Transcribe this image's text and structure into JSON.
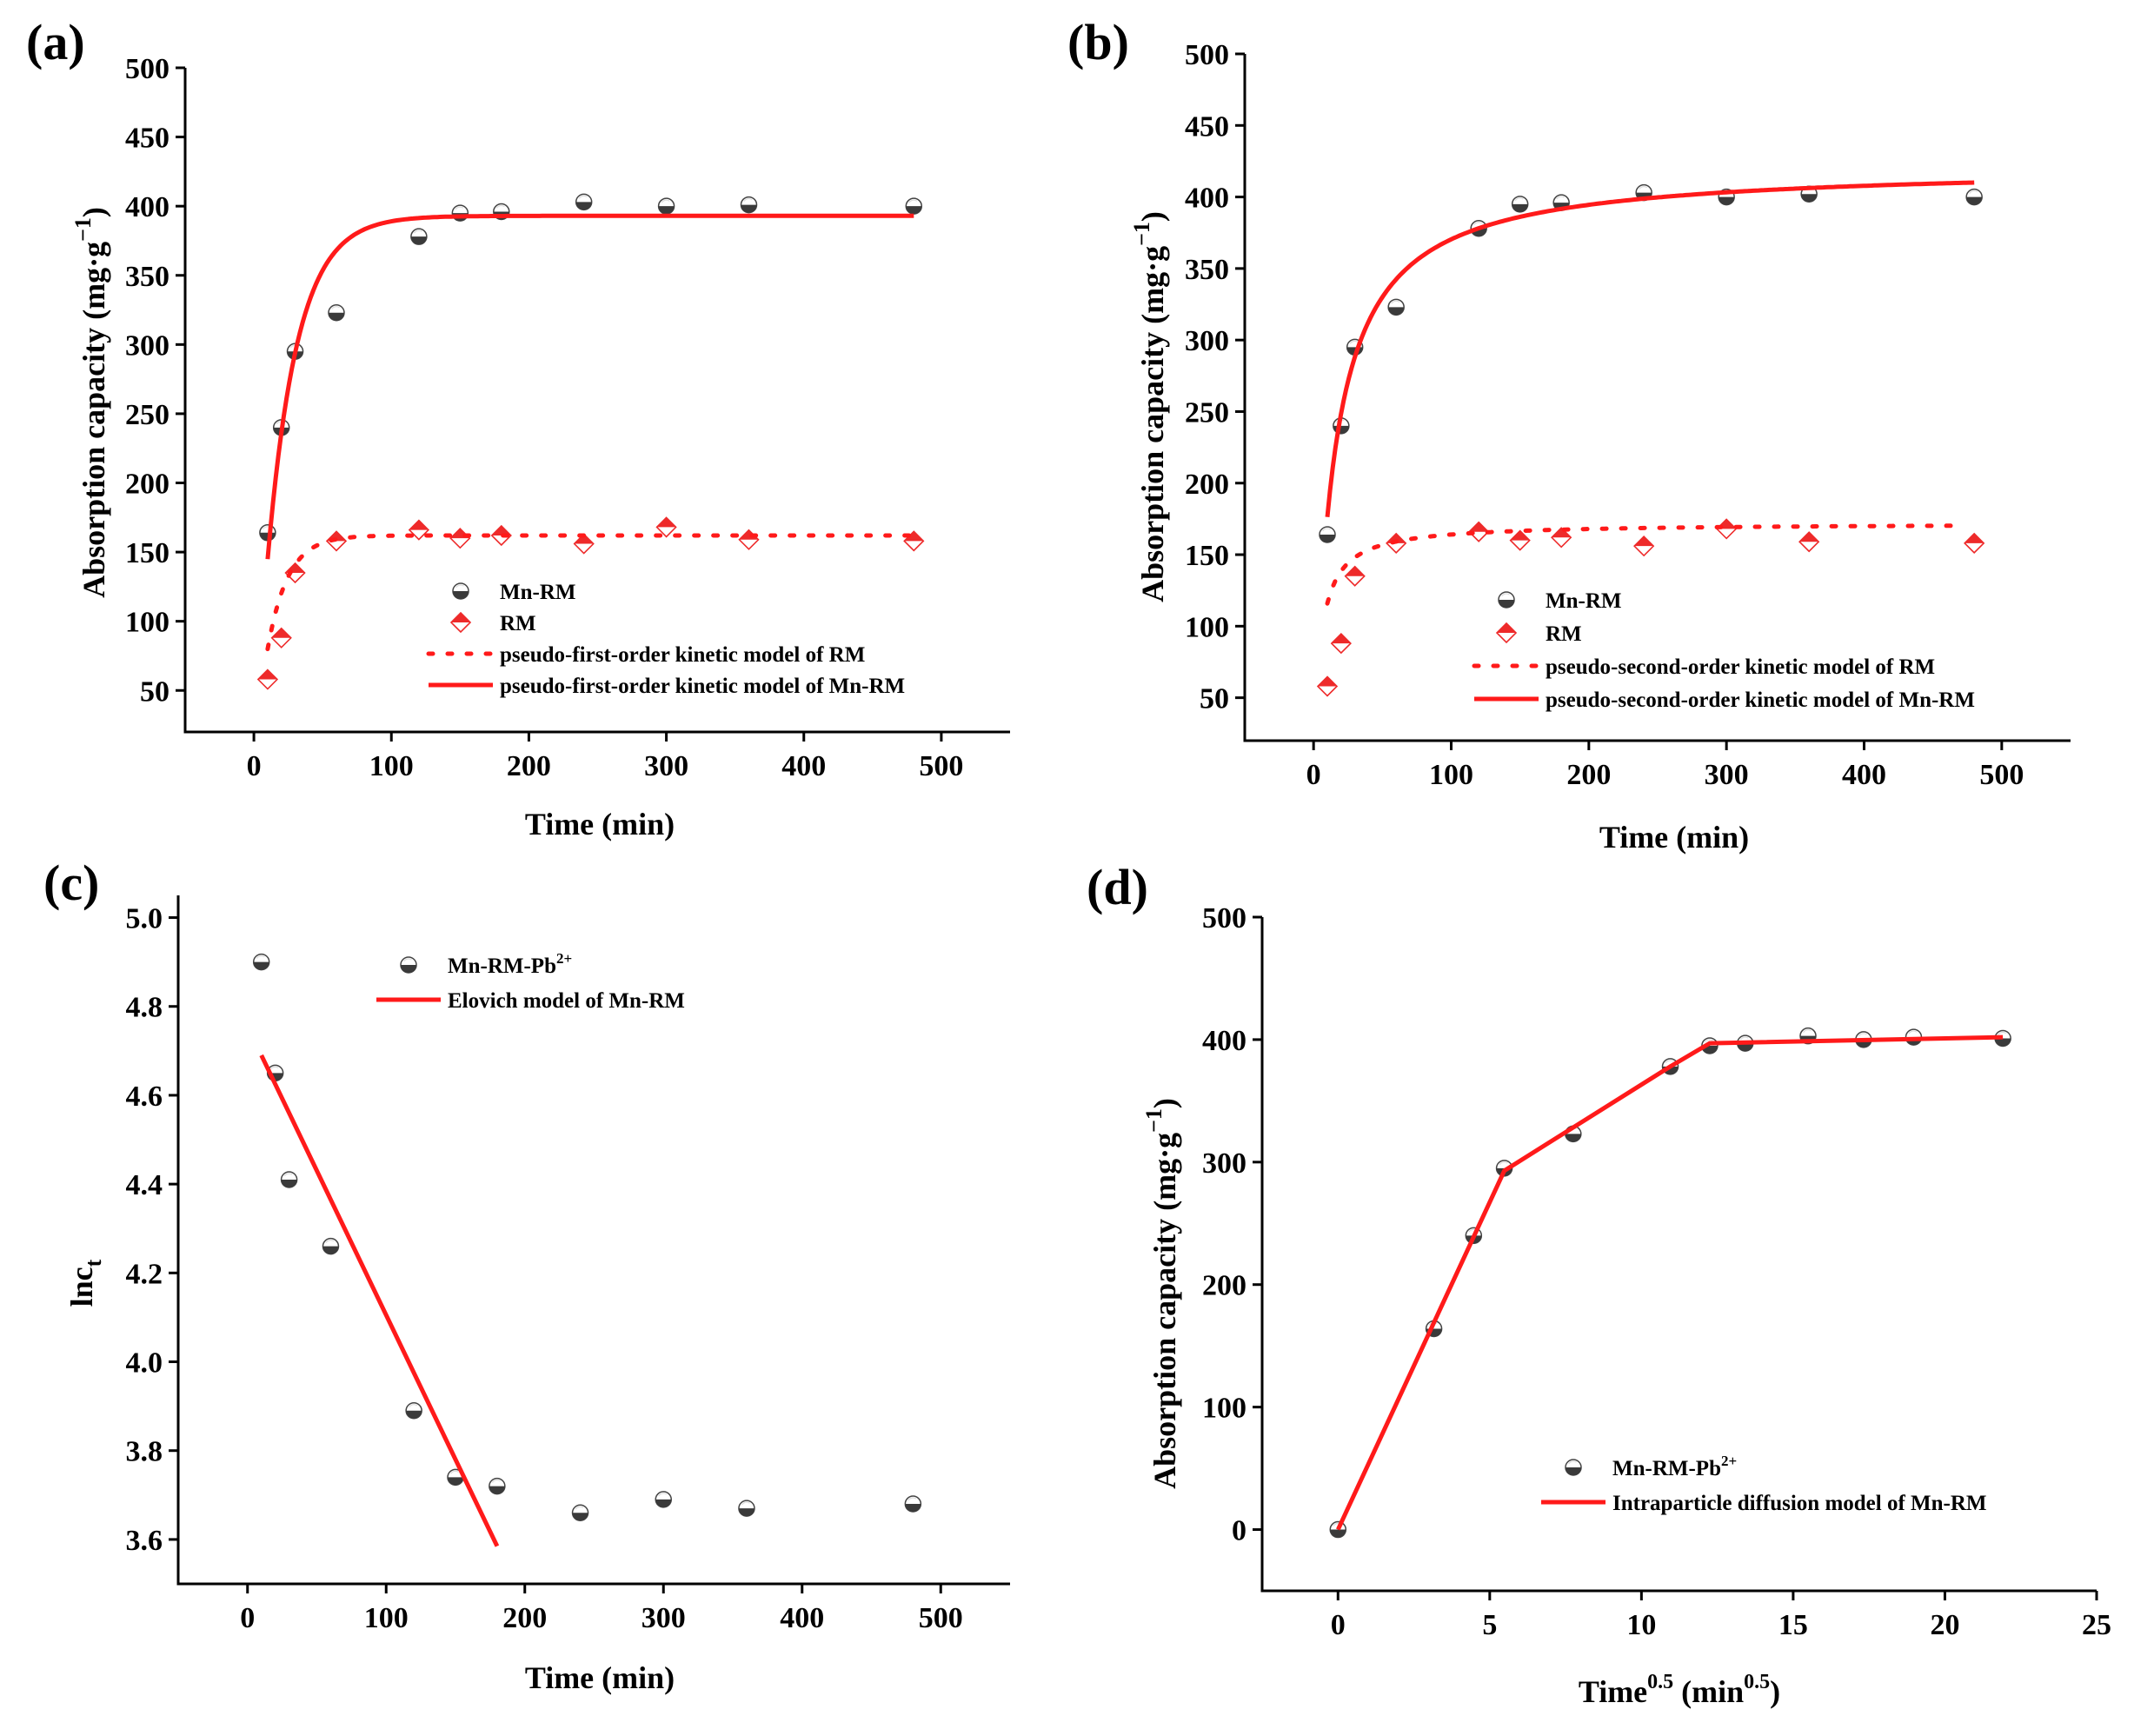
{
  "colors": {
    "fit": "#ff1a1a",
    "mn_dark": "#3a3a3a",
    "mn_light": "#ffffff",
    "rm_red": "#ee2a2a",
    "rm_light": "#ffffff",
    "axis": "#000000"
  },
  "chart_data": [
    {
      "panel_label": "(a)",
      "type": "scatter",
      "xlabel": "Time (min)",
      "ylabel": "Absorption capacity (mg·g⁻¹)",
      "xlim": [
        -50,
        550
      ],
      "ylim": [
        20,
        500
      ],
      "xticks": [
        0,
        100,
        200,
        300,
        400,
        500
      ],
      "yticks": [
        50,
        100,
        150,
        200,
        250,
        300,
        350,
        400,
        450,
        500
      ],
      "legend_position": "lower-right",
      "series": [
        {
          "name": "Mn-RM",
          "kind": "scatter",
          "marker": "halfcircle",
          "x": [
            10,
            20,
            30,
            60,
            120,
            150,
            180,
            240,
            300,
            360,
            480
          ],
          "y": [
            164,
            240,
            295,
            323,
            378,
            395,
            396,
            403,
            400,
            401,
            400
          ]
        },
        {
          "name": "RM",
          "kind": "scatter",
          "marker": "halfdiamond",
          "x": [
            10,
            20,
            30,
            60,
            120,
            150,
            180,
            240,
            300,
            360,
            480
          ],
          "y": [
            58,
            88,
            135,
            158,
            166,
            160,
            162,
            156,
            168,
            159,
            158
          ]
        },
        {
          "name": "pseudo-first-order kinetic model of RM",
          "kind": "line",
          "style": "dotted",
          "model": "pfo",
          "params": {
            "qe": 162,
            "k": 0.068,
            "t0": 10,
            "t1": 480
          }
        },
        {
          "name": "pseudo-first-order kinetic model of Mn-RM",
          "kind": "line",
          "style": "solid",
          "model": "pfo",
          "params": {
            "qe": 393,
            "k": 0.046,
            "t0": 10,
            "t1": 480
          }
        }
      ]
    },
    {
      "panel_label": "(b)",
      "type": "scatter",
      "xlabel": "Time (min)",
      "ylabel": "Absorption capacity (mg·g⁻¹)",
      "xlim": [
        -50,
        550
      ],
      "ylim": [
        20,
        500
      ],
      "xticks": [
        0,
        100,
        200,
        300,
        400,
        500
      ],
      "yticks": [
        50,
        100,
        150,
        200,
        250,
        300,
        350,
        400,
        450,
        500
      ],
      "legend_position": "lower-right",
      "series": [
        {
          "name": "Mn-RM",
          "kind": "scatter",
          "marker": "halfcircle",
          "x": [
            10,
            20,
            30,
            60,
            120,
            150,
            180,
            240,
            300,
            360,
            480
          ],
          "y": [
            164,
            240,
            295,
            323,
            378,
            395,
            396,
            403,
            400,
            402,
            400
          ]
        },
        {
          "name": "RM",
          "kind": "scatter",
          "marker": "halfdiamond",
          "x": [
            10,
            20,
            30,
            60,
            120,
            150,
            180,
            240,
            300,
            360,
            480
          ],
          "y": [
            58,
            88,
            135,
            158,
            166,
            160,
            162,
            156,
            168,
            159,
            158
          ]
        },
        {
          "name": "pseudo-second-order kinetic model of RM",
          "kind": "line",
          "style": "dotted",
          "model": "pso",
          "params": {
            "qe": 172,
            "k": 0.0012,
            "t0": 10,
            "t1": 470
          }
        },
        {
          "name": "pseudo-second-order kinetic model of Mn-RM",
          "kind": "line",
          "style": "solid",
          "model": "pso",
          "params": {
            "qe": 422,
            "k": 0.00017,
            "t0": 10,
            "t1": 480
          }
        }
      ]
    },
    {
      "panel_label": "(c)",
      "type": "scatter",
      "xlabel": "Time (min)",
      "ylabel": "lnct",
      "xlim": [
        -50,
        550
      ],
      "ylim": [
        3.5,
        5.05
      ],
      "xticks": [
        0,
        100,
        200,
        300,
        400,
        500
      ],
      "yticks": [
        3.6,
        3.8,
        4.0,
        4.2,
        4.4,
        4.6,
        4.8,
        5.0
      ],
      "legend_position": "top-center",
      "series": [
        {
          "name": "Mn-RM-Pb2+",
          "kind": "scatter",
          "marker": "halfcircle",
          "x": [
            10,
            20,
            30,
            60,
            120,
            150,
            180,
            240,
            300,
            360,
            480
          ],
          "y": [
            4.9,
            4.65,
            4.41,
            4.26,
            3.89,
            3.74,
            3.72,
            3.66,
            3.69,
            3.67,
            3.68
          ]
        },
        {
          "name": "Elovich model of Mn-RM",
          "kind": "line",
          "style": "solid",
          "x": [
            10,
            180
          ],
          "y": [
            4.69,
            3.585
          ]
        }
      ]
    },
    {
      "panel_label": "(d)",
      "type": "scatter",
      "xlabel": "Time0.5 (min0.5)",
      "ylabel": "Absorption capacity (mg·g⁻¹)",
      "xlim": [
        -2.5,
        25
      ],
      "ylim": [
        -50,
        500
      ],
      "xticks": [
        0,
        5,
        10,
        15,
        20,
        25
      ],
      "yticks": [
        0,
        100,
        200,
        300,
        400,
        500
      ],
      "legend_position": "lower-right",
      "series": [
        {
          "name": "Mn-RM-Pb2+",
          "kind": "scatter",
          "marker": "halfcircle",
          "x": [
            0,
            3.16,
            4.47,
            5.48,
            7.75,
            10.95,
            12.25,
            13.42,
            15.49,
            17.32,
            18.97,
            21.91
          ],
          "y": [
            0,
            164,
            240,
            295,
            323,
            378,
            395,
            397,
            403,
            400,
            402,
            401
          ]
        },
        {
          "name": "Intraparticle diffusion model of Mn-RM",
          "kind": "line",
          "style": "solid",
          "x": [
            0,
            5.48,
            10.95,
            12.25,
            21.91
          ],
          "y": [
            0,
            293,
            378,
            397,
            402
          ]
        }
      ]
    }
  ]
}
